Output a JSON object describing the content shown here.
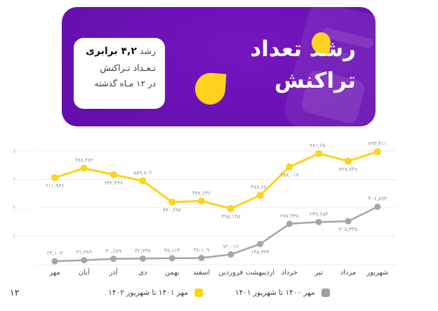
{
  "page": {
    "number": "۱۲"
  },
  "banner": {
    "title_line1": "رشد تعداد",
    "title_line2": "تراکنش",
    "card": {
      "line1_prefix": "رشد",
      "line1_bold": "۴,۲ برابری",
      "line2": "تـعـداد تـراکنش",
      "line3": "در ۱۲ مـاه گذشته"
    },
    "accent_color": "#ffd21e"
  },
  "chart_data": {
    "type": "line",
    "rtl": true,
    "grid": true,
    "x_labels": [
      "مهر",
      "آبان",
      "آذر",
      "دی",
      "بهمن",
      "اسفند",
      "فروردین",
      "اردیبهشت",
      "خرداد",
      "تیر",
      "مرداد",
      "شهریور"
    ],
    "y_axis": {
      "min": 0,
      "max": 800000,
      "ticks": [
        {
          "label": "۸۰۰,۰۰۰",
          "value": 800000
        },
        {
          "label": "۶۰۰,۰۰۰",
          "value": 600000
        },
        {
          "label": "۴۰۰,۰۰۰",
          "value": 400000
        },
        {
          "label": "۲۰۰,۰۰۰",
          "value": 200000
        },
        {
          "label": "۰",
          "value": 0
        }
      ]
    },
    "series": [
      {
        "name": "مهر ۱۴۰۱ تا شهریور ۱۴۰۲",
        "color": "#ffd21e",
        "line_width": 3,
        "marker_radius": 5,
        "values": [
          611936,
          678482,
          632496,
          589702,
          440292,
          447636,
          395145,
          487660,
          688017,
          781650,
          728748,
          794411
        ],
        "labels": [
          "۶۱۱,۹۳۶",
          "۶۷۸,۴۸۲",
          "۶۳۲,۴۹۶",
          "۵۸۹,۷۰۲",
          "۴۴۰,۲۹۲",
          "۴۴۷,۶۳۶",
          "۳۹۵,۱۴۵",
          "۴۸۷,۶۶۰",
          "۶۸۸,۰۱۷",
          "۷۸۱,۶۵۰",
          "۷۲۸,۷۴۸",
          "۷۹۴,۴۱۱"
        ],
        "label_side": [
          "below",
          "above",
          "below",
          "above",
          "below",
          "above",
          "below",
          "above",
          "below",
          "above",
          "below",
          "above"
        ]
      },
      {
        "name": "مهر ۱۴۰۰ تا شهریور ۱۴۰۱",
        "color": "#a5a5aa",
        "line_width": 2.5,
        "marker_radius": 4.5,
        "values": [
          24103,
          31389,
          40689,
          42797,
          45113,
          47109,
          72012,
          145334,
          287338,
          299653,
          305345,
          406894
        ],
        "labels": [
          "۲۴,۱۰۳",
          "۳۱,۳۸۹",
          "۴۰,۶۸۹",
          "۴۲,۷۹۷",
          "۴۵,۱۱۳",
          "۴۷,۱۰۹",
          "۷۲,۰۱۲",
          "۱۴۵,۳۳۴",
          "۲۸۷,۳۳۸",
          "۲۹۹,۶۵۳",
          "۳۰۵,۳۴۵",
          "۴۰۶,۸۹۴"
        ],
        "label_side": [
          "above",
          "above",
          "above",
          "above",
          "above",
          "above",
          "above",
          "below",
          "above",
          "above",
          "below",
          "above"
        ]
      }
    ],
    "legend": [
      {
        "label": "مهر ۱۴۰۱ تا شهریور ۱۴۰۲",
        "color": "#ffd500"
      },
      {
        "label": "مهر ۱۴۰۰ تا شهریور ۱۴۰۱",
        "color": "#9fa0a5"
      }
    ],
    "colors": {
      "grid_line": "#ebebee",
      "y_tick_text": "#c6cad1",
      "x_tick_text": "#44494f",
      "point_label_text": "#8e9197"
    }
  }
}
